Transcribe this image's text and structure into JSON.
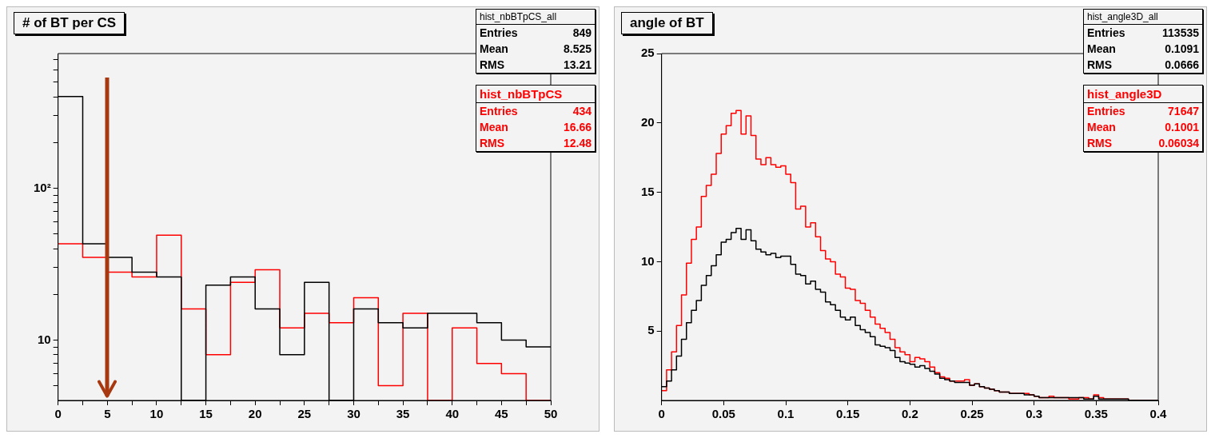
{
  "chart_data": [
    {
      "type": "histogram",
      "title": "# of BT per CS",
      "bins": [
        0,
        2.5,
        5,
        7.5,
        10,
        12.5,
        15,
        17.5,
        20,
        22.5,
        25,
        27.5,
        30,
        32.5,
        35,
        37.5,
        40,
        42.5,
        45,
        47.5,
        50
      ],
      "series": [
        {
          "name": "hist_nbBTpCS_all",
          "color": "#000000",
          "values": [
            402,
            43,
            35,
            28,
            26,
            null,
            23,
            26,
            16,
            8,
            24,
            null,
            16,
            13,
            12,
            15,
            15,
            13,
            10,
            9
          ]
        },
        {
          "name": "hist_nbBTpCS",
          "color": "#ff0000",
          "values": [
            43,
            35,
            28,
            26,
            49,
            16,
            8,
            24,
            29,
            12,
            15,
            13,
            19,
            5,
            15,
            null,
            12,
            7,
            6,
            null
          ]
        }
      ],
      "log": "y",
      "xlim": [
        0,
        50
      ],
      "ylim": [
        4,
        770
      ],
      "xticks": [
        0,
        {
          "value": 2.5,
          "label": null
        },
        5,
        {
          "value": 7.5,
          "label": null
        },
        10,
        {
          "value": 12.5,
          "label": null
        },
        15,
        {
          "value": 17.5,
          "label": null
        },
        20,
        {
          "value": 22.5,
          "label": null
        },
        25,
        {
          "value": 27.5,
          "label": null
        },
        30,
        {
          "value": 32.5,
          "label": null
        },
        35,
        {
          "value": 37.5,
          "label": null
        },
        40,
        {
          "value": 42.5,
          "label": null
        },
        45,
        {
          "value": 47.5,
          "label": null
        },
        50
      ],
      "yticks": [
        {
          "value": 5,
          "label": null
        },
        {
          "value": 6,
          "label": null
        },
        {
          "value": 7,
          "label": null
        },
        {
          "value": 8,
          "label": null
        },
        {
          "value": 9,
          "label": null
        },
        10,
        {
          "value": 20,
          "label": null
        },
        {
          "value": 30,
          "label": null
        },
        {
          "value": 40,
          "label": null
        },
        {
          "value": 50,
          "label": null
        },
        {
          "value": 60,
          "label": null
        },
        {
          "value": 70,
          "label": null
        },
        {
          "value": 80,
          "label": null
        },
        {
          "value": 90,
          "label": null
        },
        {
          "value": 100,
          "label": "10²"
        },
        {
          "value": 200,
          "label": null
        },
        {
          "value": 300,
          "label": null
        },
        {
          "value": 400,
          "label": null
        },
        {
          "value": 500,
          "label": null
        },
        {
          "value": 600,
          "label": null
        },
        {
          "value": 700,
          "label": null
        }
      ],
      "grid": false,
      "annotations": [
        "Entries 849",
        "Mean 8.525",
        "RMS 13.21",
        "Entries 434",
        "Mean 16.66",
        "RMS 12.48"
      ],
      "ref_lines": [
        {
          "axis": "x",
          "value": 5,
          "color": "#a8380f"
        }
      ]
    },
    {
      "type": "histogram",
      "title": "angle of BT",
      "bins": [
        0,
        0.004,
        0.008,
        0.012,
        0.016,
        0.02,
        0.024,
        0.028,
        0.032,
        0.036,
        0.04,
        0.044,
        0.048,
        0.052,
        0.056,
        0.06,
        0.064,
        0.068,
        0.072,
        0.076,
        0.08,
        0.084,
        0.088,
        0.092,
        0.096,
        0.1,
        0.104,
        0.108,
        0.112,
        0.116,
        0.12,
        0.124,
        0.128,
        0.132,
        0.136,
        0.14,
        0.144,
        0.148,
        0.152,
        0.156,
        0.16,
        0.164,
        0.168,
        0.172,
        0.176,
        0.18,
        0.184,
        0.188,
        0.192,
        0.196,
        0.2,
        0.204,
        0.208,
        0.212,
        0.216,
        0.22,
        0.224,
        0.228,
        0.232,
        0.236,
        0.24,
        0.244,
        0.248,
        0.252,
        0.256,
        0.26,
        0.264,
        0.268,
        0.272,
        0.276,
        0.28,
        0.284,
        0.288,
        0.292,
        0.296,
        0.3,
        0.304,
        0.308,
        0.312,
        0.316,
        0.32,
        0.324,
        0.328,
        0.332,
        0.336,
        0.34,
        0.344,
        0.348,
        0.352,
        0.356,
        0.36,
        0.364,
        0.368,
        0.372,
        0.376,
        0.38,
        0.384,
        0.388,
        0.392,
        0.396,
        0.4
      ],
      "series": [
        {
          "name": "hist_angle3D_all",
          "color": "#000000",
          "values": [
            1.0,
            1.4,
            2.2,
            3.2,
            4.4,
            5.6,
            6.5,
            7.2,
            8.3,
            9.0,
            9.7,
            10.5,
            11.4,
            11.6,
            12.1,
            12.4,
            11.6,
            12.3,
            11.5,
            10.9,
            10.7,
            10.5,
            10.6,
            10.3,
            10.4,
            10.4,
            9.8,
            9.1,
            9.0,
            8.4,
            8.6,
            8.0,
            7.8,
            7.1,
            6.9,
            6.5,
            6.0,
            5.8,
            6.0,
            5.4,
            5.1,
            4.9,
            4.6,
            4.0,
            3.9,
            3.8,
            3.6,
            3.1,
            2.8,
            2.7,
            2.6,
            2.4,
            2.5,
            2.3,
            2.1,
            1.9,
            1.6,
            1.5,
            1.4,
            1.3,
            1.3,
            1.3,
            1.1,
            1.2,
            1.0,
            0.9,
            0.8,
            0.7,
            0.6,
            0.6,
            0.5,
            0.5,
            0.5,
            0.4,
            0.4,
            0.3,
            0.2,
            0.2,
            0.2,
            0.2,
            0.2,
            0.2,
            0.2,
            0.2,
            0.2,
            0.1,
            0.1,
            0.3,
            0.1,
            0.1,
            0.1,
            0.1,
            0.1,
            0.1,
            0,
            0,
            0,
            0,
            0,
            0
          ]
        },
        {
          "name": "hist_angle3D",
          "color": "#ff0000",
          "values": [
            0.7,
            2.2,
            3.5,
            5.4,
            7.6,
            9.9,
            11.6,
            12.5,
            14.7,
            15.5,
            16.3,
            17.8,
            19.2,
            19.8,
            20.7,
            20.9,
            19.2,
            20.5,
            19.1,
            17.4,
            17.0,
            17.5,
            17.0,
            16.8,
            16.9,
            16.3,
            15.7,
            13.8,
            14.0,
            12.5,
            12.8,
            11.8,
            10.8,
            10.2,
            10.0,
            9.1,
            8.9,
            8.1,
            8.0,
            7.2,
            7.0,
            6.5,
            6.0,
            5.5,
            5.2,
            4.9,
            4.4,
            3.8,
            3.5,
            3.3,
            2.8,
            3.1,
            3.0,
            2.8,
            2.4,
            2.0,
            1.7,
            1.6,
            1.4,
            1.4,
            1.4,
            1.5,
            1.1,
            1.2,
            1.0,
            0.9,
            0.8,
            0.7,
            0.6,
            0.6,
            0.5,
            0.5,
            0.5,
            0.5,
            0.4,
            0.3,
            0.2,
            0.2,
            0.3,
            0.2,
            0.2,
            0.2,
            0.1,
            0.1,
            0.2,
            0.2,
            0.1,
            0.4,
            0.2,
            0.1,
            0.1,
            0.1,
            0.1,
            0.1,
            0,
            0,
            0,
            0,
            0,
            0
          ]
        }
      ],
      "xlim": [
        0,
        0.4
      ],
      "ylim": [
        0,
        25
      ],
      "xticks": [
        0,
        0.05,
        0.1,
        0.15,
        0.2,
        0.25,
        0.3,
        0.35,
        0.4
      ],
      "yticks": [
        5,
        10,
        15,
        20,
        25
      ],
      "grid": false,
      "annotations": [
        "Entries 113535",
        "Mean 0.1091",
        "RMS 0.0666",
        "Entries 71647",
        "Mean 0.1001",
        "RMS 0.06034"
      ]
    }
  ]
}
